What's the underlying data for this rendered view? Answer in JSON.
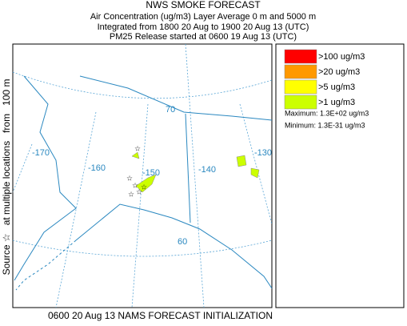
{
  "title": "NWS SMOKE FORECAST",
  "subtitle_lines": [
    "Air Concentration (ug/m3) Layer Average    0 m and  5000 m",
    "Integrated from 1800 20 Aug to 1900 20 Aug 13 (UTC)",
    "PM25 Release started at 0600 19 Aug 13 (UTC)"
  ],
  "side_label": "Source ☆   at multiple locations   from   100 m",
  "footer": "0600 20 Aug 13 NAMS FORECAST INITIALIZATION",
  "legend": {
    "items": [
      {
        "label": ">100 ug/m3",
        "color": "#ff0000"
      },
      {
        "label": ">20 ug/m3",
        "color": "#ff9900"
      },
      {
        "label": ">5 ug/m3",
        "color": "#ffff00"
      },
      {
        "label": ">1 ug/m3",
        "color": "#ccff00"
      }
    ],
    "maximum": "Maximum: 1.3E+02 ug/m3",
    "minimum": "Minimum: 1.3E-31 ug/m3"
  },
  "graticule_labels": [
    "-170",
    "-160",
    "-150",
    "-140",
    "-130",
    "70",
    "60"
  ]
}
